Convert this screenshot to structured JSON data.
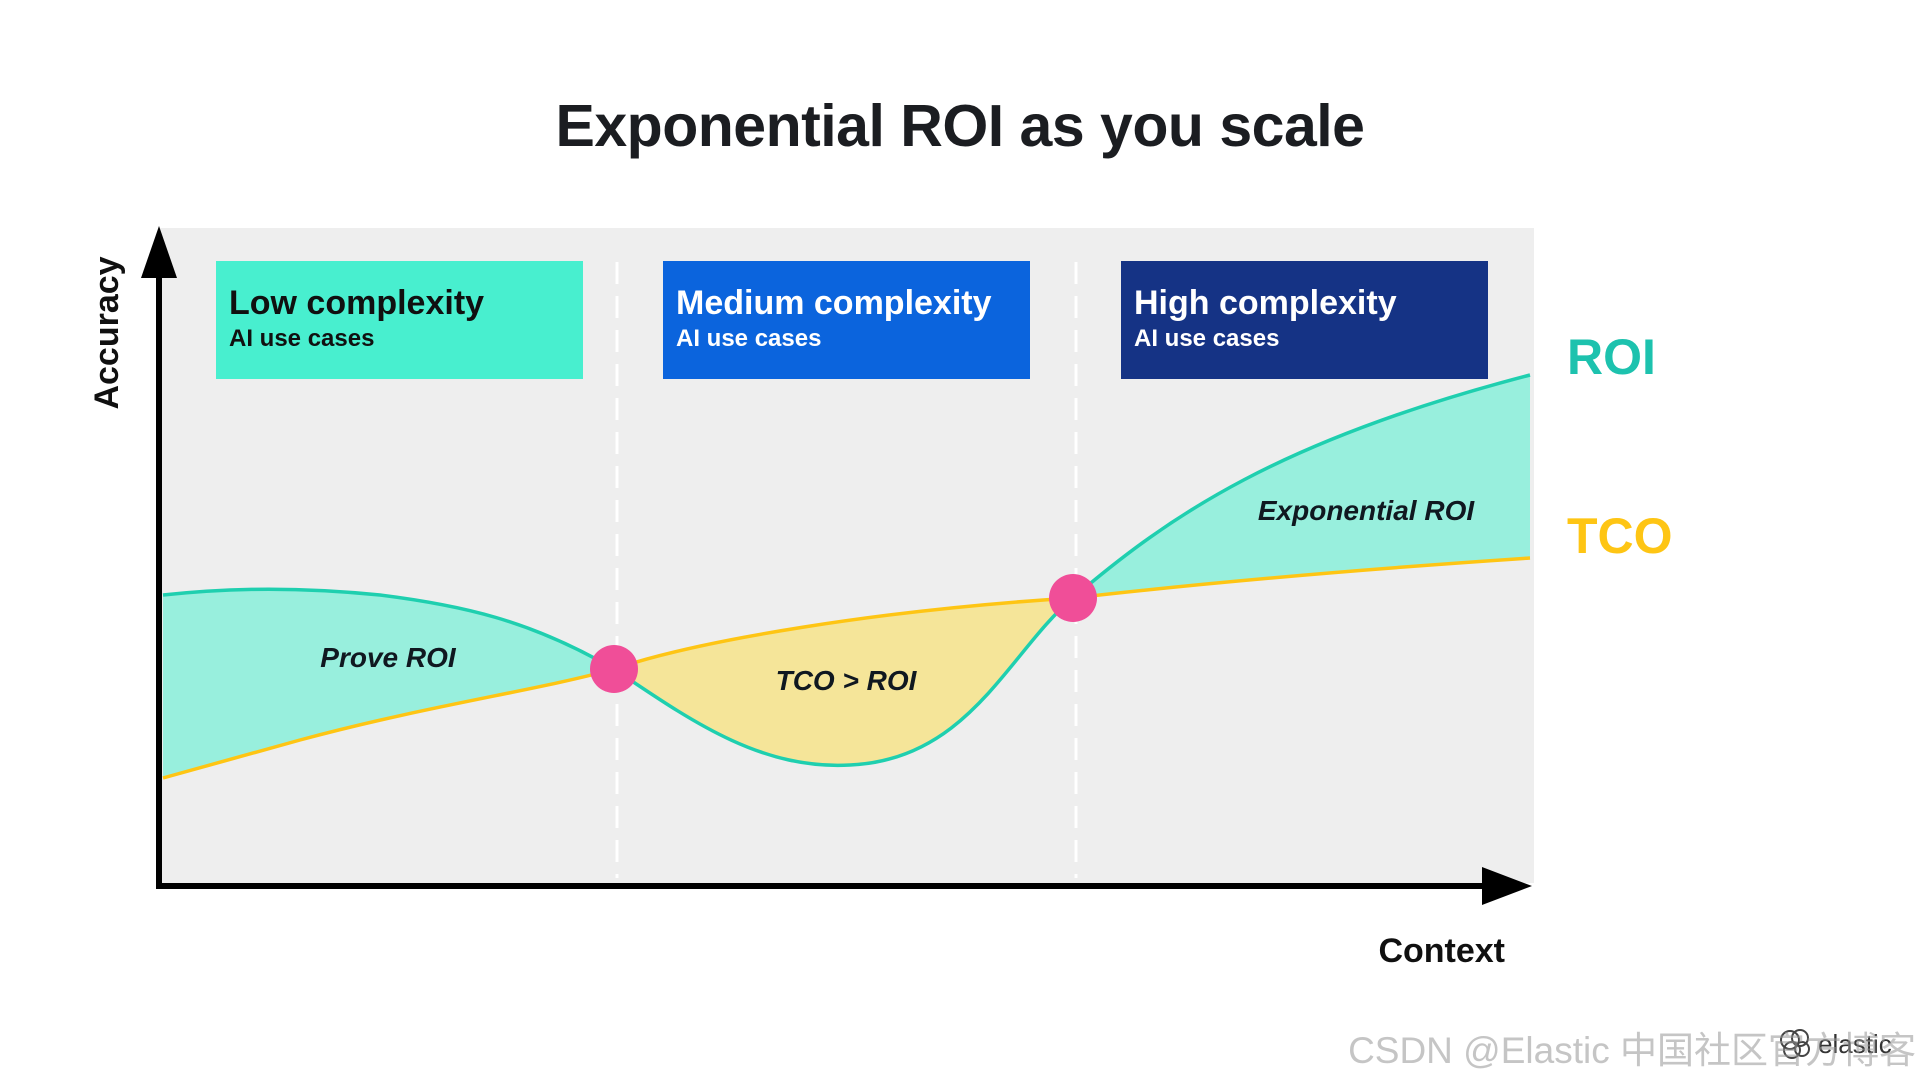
{
  "title": "Exponential ROI as you scale",
  "axes": {
    "y_label": "Accuracy",
    "x_label": "Context"
  },
  "boxes": [
    {
      "title": "Low complexity",
      "subtitle": "AI use cases",
      "color": "#48EFCF",
      "text_color": "#101010"
    },
    {
      "title": "Medium complexity",
      "subtitle": "AI use cases",
      "color": "#0B64DD",
      "text_color": "#FFFFFF"
    },
    {
      "title": "High complexity",
      "subtitle": "AI use cases",
      "color": "#153385",
      "text_color": "#FFFFFF"
    }
  ],
  "regions": [
    {
      "label": "Prove ROI",
      "color": "#98EFDD"
    },
    {
      "label": "TCO > ROI",
      "color": "#F5E599"
    },
    {
      "label": "Exponential ROI",
      "color": "#98EFDD"
    }
  ],
  "legend": {
    "roi": {
      "label": "ROI",
      "color": "#1DC2AE"
    },
    "tco": {
      "label": "TCO",
      "color": "#FEC514"
    }
  },
  "colors": {
    "background_panel": "#EEEEEE",
    "roi_line": "#1FCFAF",
    "tco_line": "#FEC514",
    "crossing_point": "#F04E98",
    "axis": "#000000"
  },
  "logo": {
    "text": "elastic",
    "icon": "elastic-logo-icon"
  },
  "watermark": "CSDN @Elastic 中国社区官方博客"
}
